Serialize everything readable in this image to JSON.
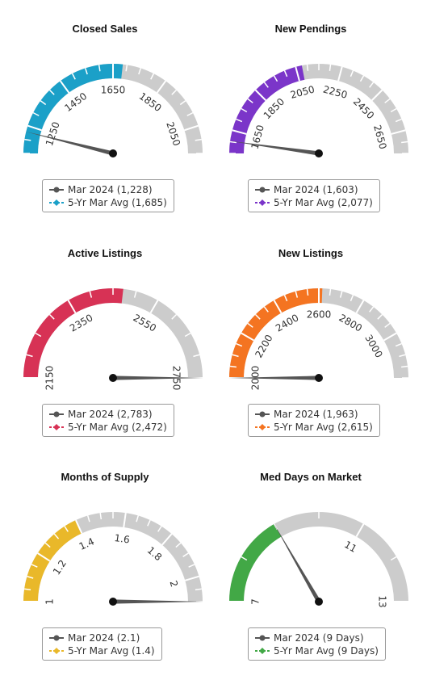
{
  "chart_data": [
    {
      "type": "gauge",
      "title": "Closed Sales",
      "min": 1150,
      "max": 2150,
      "ticks": [
        1250,
        1450,
        1650,
        1850,
        2050
      ],
      "needle_value": 1228,
      "band_value": 1685,
      "band_color": "#1ba0c8",
      "needle_color": "#555555",
      "legend": [
        {
          "label": "Mar 2024 (1,228)",
          "color": "#555555",
          "marker": "circle"
        },
        {
          "label": "5-Yr Mar Avg (1,685)",
          "color": "#1ba0c8",
          "marker": "diamond"
        }
      ]
    },
    {
      "type": "gauge",
      "title": "New Pendings",
      "min": 1550,
      "max": 2750,
      "ticks": [
        1650,
        1850,
        2050,
        2250,
        2450,
        2650
      ],
      "needle_value": 1603,
      "band_value": 2077,
      "band_color": "#7b35c9",
      "needle_color": "#555555",
      "legend": [
        {
          "label": "Mar 2024 (1,603)",
          "color": "#555555",
          "marker": "circle"
        },
        {
          "label": "5-Yr Mar Avg (2,077)",
          "color": "#7b35c9",
          "marker": "diamond"
        }
      ]
    },
    {
      "type": "gauge",
      "title": "Active Listings",
      "min": 2150,
      "max": 2750,
      "ticks": [
        2150,
        2350,
        2550,
        2750
      ],
      "needle_value": 2783,
      "band_value": 2472,
      "band_color": "#d73255",
      "needle_color": "#555555",
      "legend": [
        {
          "label": "Mar 2024 (2,783)",
          "color": "#555555",
          "marker": "circle"
        },
        {
          "label": "5-Yr Mar Avg (2,472)",
          "color": "#d73255",
          "marker": "diamond"
        }
      ]
    },
    {
      "type": "gauge",
      "title": "New Listings",
      "min": 2000,
      "max": 3200,
      "ticks": [
        2000,
        2200,
        2400,
        2600,
        2800,
        3000
      ],
      "needle_value": 1963,
      "band_value": 2615,
      "band_color": "#f47421",
      "needle_color": "#555555",
      "legend": [
        {
          "label": "Mar 2024 (1,963)",
          "color": "#555555",
          "marker": "circle"
        },
        {
          "label": "5-Yr Mar Avg (2,615)",
          "color": "#f47421",
          "marker": "diamond"
        }
      ]
    },
    {
      "type": "gauge",
      "title": "Months of Supply",
      "min": 1.0,
      "max": 2.1,
      "ticks": [
        1,
        1.2,
        1.4,
        1.6,
        1.8,
        2
      ],
      "needle_value": 2.1,
      "band_value": 1.4,
      "band_color": "#e9b82a",
      "needle_color": "#555555",
      "legend": [
        {
          "label": "Mar 2024 (2.1)",
          "color": "#555555",
          "marker": "circle"
        },
        {
          "label": "5-Yr Mar Avg (1.4)",
          "color": "#e9b82a",
          "marker": "diamond"
        }
      ]
    },
    {
      "type": "gauge",
      "title": "Med Days on Market",
      "min": 7,
      "max": 13,
      "ticks": [
        7,
        11,
        13
      ],
      "needle_value": 9,
      "band_value": 9,
      "band_color": "#42a846",
      "needle_color": "#555555",
      "legend": [
        {
          "label": "Mar 2024 (9 Days)",
          "color": "#555555",
          "marker": "circle"
        },
        {
          "label": "5-Yr Mar Avg (9 Days)",
          "color": "#42a846",
          "marker": "diamond"
        }
      ]
    }
  ]
}
